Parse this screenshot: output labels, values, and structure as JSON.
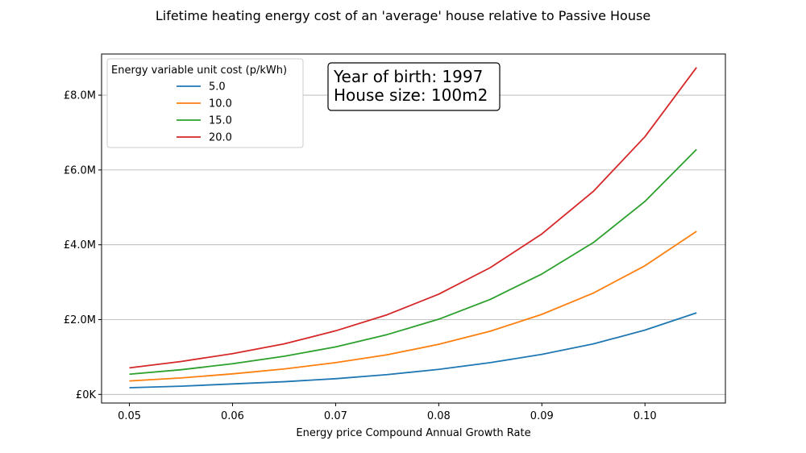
{
  "chart_data": {
    "type": "line",
    "title": "Lifetime heating energy cost of an 'average' house relative to Passive House",
    "xlabel": "Energy price Compound Annual Growth Rate",
    "ylabel": "",
    "x": [
      0.05,
      0.055,
      0.06,
      0.065,
      0.07,
      0.075,
      0.08,
      0.085,
      0.09,
      0.095,
      0.1,
      0.105
    ],
    "xlim": [
      0.0473,
      0.1078
    ],
    "ylim": [
      -0.23,
      9.1
    ],
    "y_unit": "£M",
    "xticks": [
      0.05,
      0.06,
      0.07,
      0.08,
      0.09,
      0.1
    ],
    "xtick_labels": [
      "0.05",
      "0.06",
      "0.07",
      "0.08",
      "0.09",
      "0.10"
    ],
    "yticks": [
      0,
      2,
      4,
      6,
      8
    ],
    "ytick_labels": [
      "£0K",
      "£2.0M",
      "£4.0M",
      "£6.0M",
      "£8.0M"
    ],
    "grid": "horizontal",
    "legend": {
      "title": "Energy variable unit cost (p/kWh)",
      "placement": "top-left"
    },
    "annotation": [
      "Year of birth: 1997",
      "House size: 100m2"
    ],
    "series": [
      {
        "name": "5.0",
        "color": "#1f77b4",
        "values": [
          0.18,
          0.22,
          0.28,
          0.34,
          0.42,
          0.53,
          0.67,
          0.85,
          1.07,
          1.35,
          1.72,
          2.18
        ]
      },
      {
        "name": "10.0",
        "color": "#ff7f0e",
        "values": [
          0.36,
          0.44,
          0.55,
          0.68,
          0.85,
          1.06,
          1.34,
          1.69,
          2.14,
          2.71,
          3.44,
          4.36
        ]
      },
      {
        "name": "15.0",
        "color": "#2ca02c",
        "values": [
          0.54,
          0.66,
          0.82,
          1.02,
          1.27,
          1.6,
          2.01,
          2.54,
          3.22,
          4.06,
          5.16,
          6.55
        ]
      },
      {
        "name": "20.0",
        "color": "#d62728",
        "values": [
          0.71,
          0.88,
          1.09,
          1.35,
          1.7,
          2.13,
          2.68,
          3.39,
          4.29,
          5.43,
          6.89,
          8.74
        ]
      }
    ]
  }
}
